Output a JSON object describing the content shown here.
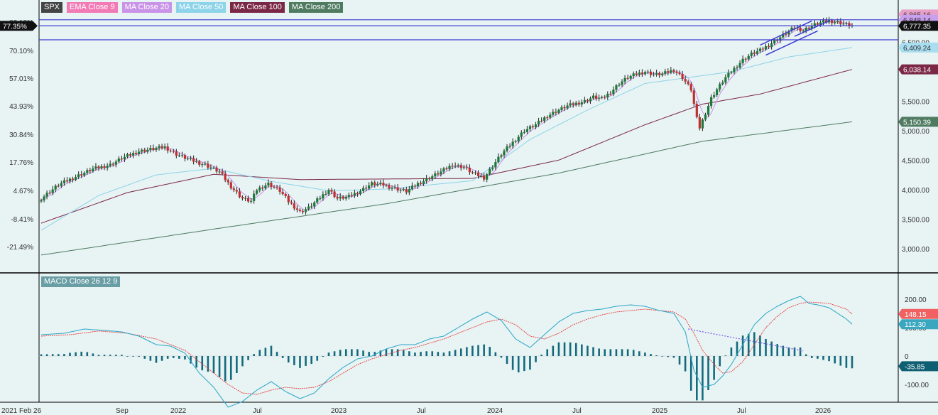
{
  "legend": [
    {
      "label": "SPX",
      "color": "#444444"
    },
    {
      "label": "EMA Close 9",
      "color": "#f27ab5"
    },
    {
      "label": "MA Close 20",
      "color": "#c993e8"
    },
    {
      "label": "MA Close 50",
      "color": "#8dd3ea"
    },
    {
      "label": "MA Close 100",
      "color": "#7b2846"
    },
    {
      "label": "MA Close 200",
      "color": "#4f7b61"
    }
  ],
  "macd_legend": {
    "label": "MACD Close 26 12 9",
    "color": "#6a9ea5"
  },
  "chart_data": [
    {
      "type": "candlestick",
      "series": "SPX",
      "x_ticks": [
        "2021 Feb 26",
        "Sep",
        "2022",
        "Jul",
        "2023",
        "Jul",
        "2024",
        "Jul",
        "2025",
        "Jul",
        "2026"
      ],
      "right_axis_ticks": [
        "6,500.00",
        "5,500.00",
        "5,000.00",
        "4,500.00",
        "4,000.00",
        "3,500.00",
        "3,000.00"
      ],
      "left_axis_ticks": [
        "83.18%",
        "70.10%",
        "57.01%",
        "43.93%",
        "30.84%",
        "17.76%",
        "4.67%",
        "-8.41%",
        "-21.49%"
      ],
      "current_left": "77.35%",
      "price_labels": [
        {
          "label": "6,865.16",
          "color": "#e9a0c8",
          "text": "#333333"
        },
        {
          "label": "6,848.14",
          "color": "#c9a0ee",
          "text": "#333333"
        },
        {
          "label": "6,777.35",
          "color": "#111111",
          "text": "#ffffff"
        },
        {
          "label": "6,409.24",
          "color": "#a8def0",
          "text": "#333333"
        },
        {
          "label": "6,038.14",
          "color": "#7b2846",
          "text": "#ffffff"
        },
        {
          "label": "5,150.39",
          "color": "#4f7b61",
          "text": "#ffffff"
        }
      ],
      "anchors": [
        [
          0,
          3850
        ],
        [
          6,
          4080
        ],
        [
          12,
          4220
        ],
        [
          18,
          4350
        ],
        [
          24,
          4420
        ],
        [
          28,
          4530
        ],
        [
          34,
          4650
        ],
        [
          40,
          4700
        ],
        [
          43,
          4720
        ],
        [
          47,
          4600
        ],
        [
          52,
          4500
        ],
        [
          57,
          4420
        ],
        [
          62,
          4300
        ],
        [
          66,
          4050
        ],
        [
          70,
          3850
        ],
        [
          73,
          3800
        ],
        [
          75,
          4000
        ],
        [
          79,
          4100
        ],
        [
          83,
          3980
        ],
        [
          86,
          3800
        ],
        [
          90,
          3620
        ],
        [
          93,
          3690
        ],
        [
          96,
          3820
        ],
        [
          100,
          4000
        ],
        [
          103,
          3850
        ],
        [
          107,
          3880
        ],
        [
          111,
          3980
        ],
        [
          115,
          4100
        ],
        [
          119,
          4080
        ],
        [
          123,
          4020
        ],
        [
          127,
          3970
        ],
        [
          131,
          4100
        ],
        [
          135,
          4200
        ],
        [
          139,
          4300
        ],
        [
          143,
          4420
        ],
        [
          147,
          4380
        ],
        [
          150,
          4280
        ],
        [
          154,
          4200
        ],
        [
          157,
          4400
        ],
        [
          160,
          4600
        ],
        [
          164,
          4800
        ],
        [
          168,
          5000
        ],
        [
          172,
          5100
        ],
        [
          176,
          5250
        ],
        [
          180,
          5350
        ],
        [
          183,
          5420
        ],
        [
          186,
          5460
        ],
        [
          189,
          5500
        ],
        [
          192,
          5570
        ],
        [
          195,
          5540
        ],
        [
          198,
          5650
        ],
        [
          201,
          5800
        ],
        [
          204,
          5900
        ],
        [
          207,
          5960
        ],
        [
          210,
          6000
        ],
        [
          213,
          5950
        ],
        [
          216,
          5960
        ],
        [
          220,
          6030
        ],
        [
          223,
          5900
        ],
        [
          226,
          5700
        ],
        [
          228,
          5200
        ],
        [
          229,
          5050
        ],
        [
          231,
          5300
        ],
        [
          233,
          5550
        ],
        [
          235,
          5700
        ],
        [
          238,
          5900
        ],
        [
          241,
          6050
        ],
        [
          244,
          6200
        ],
        [
          247,
          6300
        ],
        [
          250,
          6360
        ],
        [
          253,
          6450
        ],
        [
          256,
          6550
        ],
        [
          259,
          6650
        ],
        [
          262,
          6750
        ],
        [
          265,
          6700
        ],
        [
          268,
          6780
        ],
        [
          271,
          6830
        ],
        [
          274,
          6860
        ],
        [
          277,
          6840
        ],
        [
          280,
          6800
        ],
        [
          282,
          6777
        ]
      ],
      "moving_averages": [
        {
          "name": "MA Close 200",
          "color": "#4f7b61",
          "points": [
            [
              0,
              2890
            ],
            [
              60,
              3330
            ],
            [
              120,
              3760
            ],
            [
              180,
              4280
            ],
            [
              230,
              4820
            ],
            [
              282,
              5150
            ]
          ]
        },
        {
          "name": "MA Close 100",
          "color": "#7b2846",
          "points": [
            [
              0,
              3430
            ],
            [
              30,
              3950
            ],
            [
              60,
              4260
            ],
            [
              90,
              4170
            ],
            [
              120,
              4180
            ],
            [
              150,
              4190
            ],
            [
              180,
              4500
            ],
            [
              210,
              5100
            ],
            [
              230,
              5450
            ],
            [
              250,
              5620
            ],
            [
              282,
              6038
            ]
          ]
        },
        {
          "name": "MA Close 50",
          "color": "#8dd3ea",
          "points": [
            [
              0,
              3310
            ],
            [
              20,
              3900
            ],
            [
              40,
              4250
            ],
            [
              60,
              4360
            ],
            [
              80,
              4140
            ],
            [
              100,
              3980
            ],
            [
              120,
              4010
            ],
            [
              150,
              4150
            ],
            [
              170,
              4850
            ],
            [
              190,
              5350
            ],
            [
              210,
              5800
            ],
            [
              225,
              5900
            ],
            [
              240,
              6000
            ],
            [
              260,
              6250
            ],
            [
              282,
              6409
            ]
          ]
        }
      ],
      "channel": {
        "color": "#3a3ad0",
        "lines": [
          [
            [
              250,
              6450
            ],
            [
              268,
              6860
            ]
          ],
          [
            [
              252,
              6280
            ],
            [
              270,
              6690
            ]
          ],
          [
            [
              262,
              6600
            ],
            [
              274,
              6860
            ]
          ]
        ],
        "levels": [
          6880,
          6777,
          6540
        ]
      }
    },
    {
      "type": "macd",
      "axis_ticks": [
        "200.00",
        "100.00",
        "0",
        "-100.00"
      ],
      "labels": [
        {
          "label": "148.15",
          "color": "#f26161",
          "text": "#ffffff"
        },
        {
          "label": "112.30",
          "color": "#3aa7c0",
          "text": "#ffffff"
        },
        {
          "label": "-35.85",
          "color": "#0f5f73",
          "text": "#ffffff"
        }
      ],
      "macd_line": [
        [
          0,
          75
        ],
        [
          8,
          80
        ],
        [
          15,
          95
        ],
        [
          22,
          90
        ],
        [
          28,
          85
        ],
        [
          34,
          70
        ],
        [
          40,
          40
        ],
        [
          45,
          35
        ],
        [
          50,
          10
        ],
        [
          55,
          -60
        ],
        [
          60,
          -110
        ],
        [
          65,
          -180
        ],
        [
          70,
          -160
        ],
        [
          75,
          -120
        ],
        [
          80,
          -90
        ],
        [
          85,
          -125
        ],
        [
          90,
          -150
        ],
        [
          95,
          -130
        ],
        [
          100,
          -80
        ],
        [
          105,
          -40
        ],
        [
          110,
          -10
        ],
        [
          115,
          0
        ],
        [
          120,
          25
        ],
        [
          125,
          40
        ],
        [
          130,
          40
        ],
        [
          135,
          60
        ],
        [
          140,
          70
        ],
        [
          145,
          100
        ],
        [
          150,
          130
        ],
        [
          155,
          155
        ],
        [
          160,
          125
        ],
        [
          165,
          60
        ],
        [
          170,
          30
        ],
        [
          175,
          75
        ],
        [
          180,
          120
        ],
        [
          185,
          150
        ],
        [
          190,
          160
        ],
        [
          195,
          165
        ],
        [
          200,
          175
        ],
        [
          205,
          180
        ],
        [
          210,
          175
        ],
        [
          215,
          160
        ],
        [
          220,
          150
        ],
        [
          224,
          85
        ],
        [
          227,
          -50
        ],
        [
          230,
          -110
        ],
        [
          234,
          -100
        ],
        [
          237,
          -70
        ],
        [
          240,
          -30
        ],
        [
          244,
          40
        ],
        [
          248,
          110
        ],
        [
          252,
          150
        ],
        [
          256,
          175
        ],
        [
          260,
          195
        ],
        [
          264,
          210
        ],
        [
          267,
          185
        ],
        [
          270,
          180
        ],
        [
          274,
          170
        ],
        [
          277,
          150
        ],
        [
          280,
          130
        ],
        [
          282,
          112
        ]
      ],
      "signal_line": [
        [
          0,
          70
        ],
        [
          10,
          75
        ],
        [
          20,
          88
        ],
        [
          30,
          80
        ],
        [
          40,
          60
        ],
        [
          45,
          40
        ],
        [
          50,
          20
        ],
        [
          55,
          -20
        ],
        [
          60,
          -60
        ],
        [
          65,
          -100
        ],
        [
          70,
          -130
        ],
        [
          75,
          -135
        ],
        [
          80,
          -120
        ],
        [
          85,
          -110
        ],
        [
          90,
          -115
        ],
        [
          95,
          -110
        ],
        [
          100,
          -90
        ],
        [
          105,
          -60
        ],
        [
          110,
          -30
        ],
        [
          115,
          -10
        ],
        [
          120,
          5
        ],
        [
          125,
          20
        ],
        [
          130,
          30
        ],
        [
          135,
          45
        ],
        [
          140,
          60
        ],
        [
          145,
          80
        ],
        [
          150,
          100
        ],
        [
          155,
          120
        ],
        [
          160,
          130
        ],
        [
          165,
          110
        ],
        [
          170,
          70
        ],
        [
          175,
          60
        ],
        [
          180,
          80
        ],
        [
          185,
          110
        ],
        [
          190,
          130
        ],
        [
          195,
          145
        ],
        [
          200,
          155
        ],
        [
          205,
          160
        ],
        [
          210,
          165
        ],
        [
          215,
          160
        ],
        [
          220,
          155
        ],
        [
          224,
          130
        ],
        [
          227,
          80
        ],
        [
          230,
          20
        ],
        [
          234,
          -30
        ],
        [
          237,
          -60
        ],
        [
          240,
          -55
        ],
        [
          244,
          -20
        ],
        [
          248,
          40
        ],
        [
          252,
          100
        ],
        [
          256,
          140
        ],
        [
          260,
          170
        ],
        [
          264,
          185
        ],
        [
          267,
          190
        ],
        [
          270,
          188
        ],
        [
          274,
          185
        ],
        [
          277,
          175
        ],
        [
          280,
          165
        ],
        [
          282,
          148
        ]
      ],
      "trend_line": [
        [
          225,
          95
        ],
        [
          265,
          18
        ]
      ]
    }
  ]
}
